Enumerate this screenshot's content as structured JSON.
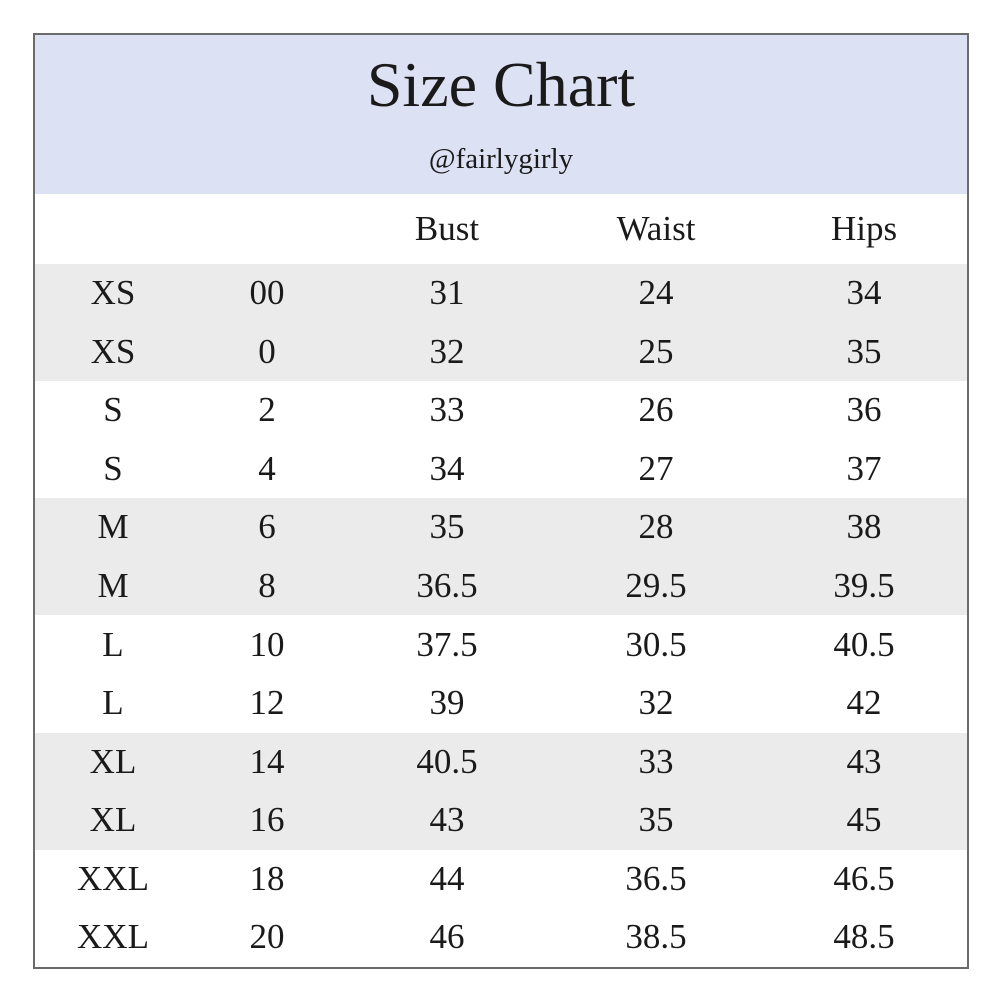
{
  "header": {
    "title": "Size Chart",
    "subtitle": "@fairlygirly"
  },
  "table": {
    "columns": [
      "Bust",
      "Waist",
      "Hips"
    ],
    "rows": [
      [
        "XS",
        "00",
        "31",
        "24",
        "34"
      ],
      [
        "XS",
        "0",
        "32",
        "25",
        "35"
      ],
      [
        "S",
        "2",
        "33",
        "26",
        "36"
      ],
      [
        "S",
        "4",
        "34",
        "27",
        "37"
      ],
      [
        "M",
        "6",
        "35",
        "28",
        "38"
      ],
      [
        "M",
        "8",
        "36.5",
        "29.5",
        "39.5"
      ],
      [
        "L",
        "10",
        "37.5",
        "30.5",
        "40.5"
      ],
      [
        "L",
        "12",
        "39",
        "32",
        "42"
      ],
      [
        "XL",
        "14",
        "40.5",
        "33",
        "43"
      ],
      [
        "XL",
        "16",
        "43",
        "35",
        "45"
      ],
      [
        "XXL",
        "18",
        "44",
        "36.5",
        "46.5"
      ],
      [
        "XXL",
        "20",
        "46",
        "38.5",
        "48.5"
      ]
    ]
  }
}
